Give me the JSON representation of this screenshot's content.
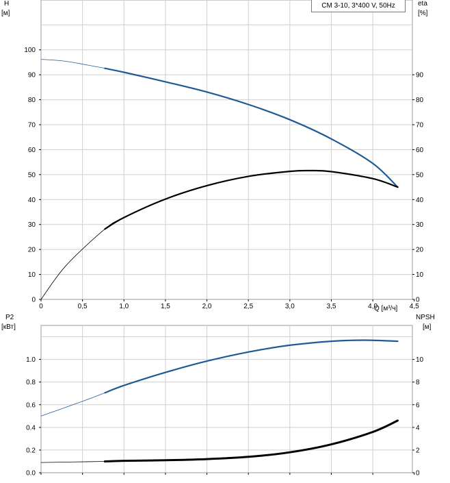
{
  "title": "CM 3-10, 3*400 V, 50Hz",
  "top_panel": {
    "left_axis_label": [
      "H",
      "[м]"
    ],
    "right_axis_label": [
      "eta",
      "[%]"
    ],
    "x_axis_label": "Q [м³/ч]"
  },
  "bottom_panel": {
    "left_axis_label": [
      "P2",
      "[кВт]"
    ],
    "right_axis_label": [
      "NPSH",
      "[м]"
    ]
  },
  "colors": {
    "blue_curve": "#1f5a96",
    "black_curve": "#000000",
    "grid": "#cfcfcf"
  },
  "chart_data": [
    {
      "type": "line",
      "title": "CM 3-10, 3*400 V, 50Hz",
      "xlabel": "Q [м³/ч]",
      "ylabel": "H [м]",
      "y2label": "eta [%]",
      "xlim": [
        0,
        4.7
      ],
      "ylim": [
        0,
        110
      ],
      "y2lim": [
        0,
        110
      ],
      "x_ticks": [
        "0",
        "0,5",
        "1,0",
        "1,5",
        "2,0",
        "2,5",
        "3,0",
        "3,5",
        "4,0",
        "4,5"
      ],
      "y_ticks": [
        "0",
        "10",
        "20",
        "30",
        "40",
        "50",
        "60",
        "70",
        "80",
        "90",
        "100"
      ],
      "y2_ticks": [
        "0",
        "10",
        "20",
        "30",
        "40",
        "50",
        "60",
        "70",
        "80",
        "90"
      ],
      "grid": true,
      "series": [
        {
          "name": "H",
          "axis": "left",
          "color": "#1f5a96",
          "operating_range_start_x": 0.77,
          "x": [
            0,
            0.3,
            0.77,
            1.0,
            1.5,
            2.0,
            2.5,
            3.0,
            3.5,
            4.0,
            4.3
          ],
          "y": [
            96.2,
            95.4,
            92.6,
            91.0,
            87.2,
            83.1,
            78.1,
            72.0,
            64.3,
            54.5,
            45.0
          ]
        },
        {
          "name": "eta",
          "axis": "right",
          "color": "#000000",
          "operating_range_start_x": 0.77,
          "x": [
            0,
            0.3,
            0.77,
            1.0,
            1.5,
            2.0,
            2.5,
            3.0,
            3.25,
            3.5,
            4.0,
            4.3
          ],
          "y": [
            0,
            13.5,
            28.2,
            32.8,
            40.2,
            45.6,
            49.3,
            51.3,
            51.6,
            51.2,
            48.4,
            45.0
          ]
        }
      ]
    },
    {
      "type": "line",
      "xlabel": "Q [м³/ч]",
      "ylabel": "P2 [кВт]",
      "y2label": "NPSH [м]",
      "xlim": [
        0,
        4.7
      ],
      "ylim": [
        0,
        1.2
      ],
      "y2lim": [
        0,
        12
      ],
      "y_ticks": [
        "0.0",
        "0.2",
        "0.4",
        "0.6",
        "0.8",
        "1.0"
      ],
      "y2_ticks": [
        "0",
        "2",
        "4",
        "6",
        "8",
        "10"
      ],
      "grid": true,
      "series": [
        {
          "name": "P2",
          "axis": "left",
          "color": "#1f5a96",
          "operating_range_start_x": 0.77,
          "x": [
            0,
            0.5,
            0.77,
            1.0,
            1.5,
            2.0,
            2.5,
            3.0,
            3.5,
            3.9,
            4.3
          ],
          "y": [
            0.5,
            0.63,
            0.705,
            0.77,
            0.885,
            0.985,
            1.065,
            1.125,
            1.16,
            1.17,
            1.16
          ]
        },
        {
          "name": "NPSH",
          "axis": "right",
          "color": "#000000",
          "operating_range_start_x": 0.77,
          "x": [
            0,
            0.77,
            1.0,
            1.5,
            2.0,
            2.5,
            3.0,
            3.5,
            4.0,
            4.3
          ],
          "y": [
            0.9,
            1.0,
            1.05,
            1.1,
            1.2,
            1.4,
            1.8,
            2.5,
            3.6,
            4.6
          ]
        }
      ]
    }
  ]
}
